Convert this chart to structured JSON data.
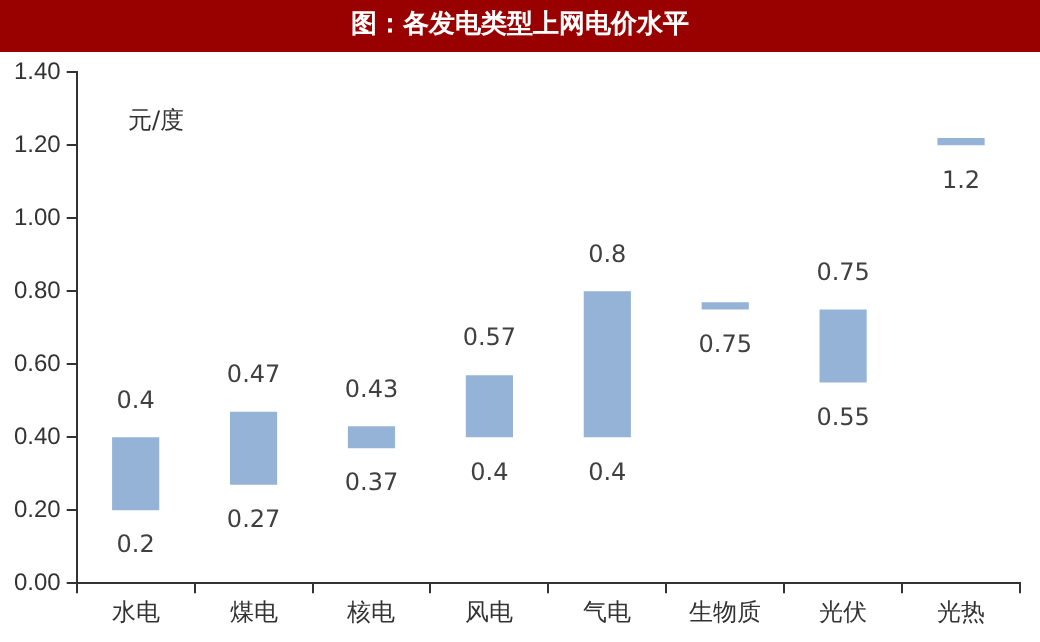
{
  "chart_data": {
    "type": "bar",
    "title": "图：各发电类型上网电价水平",
    "ylabel": "元/度",
    "categories": [
      "水电",
      "煤电",
      "核电",
      "风电",
      "气电",
      "生物质",
      "光伏",
      "光热"
    ],
    "base": [
      0.2,
      0.27,
      0.37,
      0.4,
      0.4,
      0.75,
      0.55,
      1.2
    ],
    "values": [
      0.2,
      0.2,
      0.06,
      0.17,
      0.4,
      0.02,
      0.2,
      0.02
    ],
    "color": "#95b3d7",
    "ylim": [
      0,
      1.4
    ],
    "yticks": [
      {
        "value": 0,
        "label": "0.00"
      },
      {
        "value": 0.2,
        "label": "0.20"
      },
      {
        "value": 0.4,
        "label": "0.40"
      },
      {
        "value": 0.6,
        "label": "0.60"
      },
      {
        "value": 0.8,
        "label": "0.80"
      },
      {
        "value": 1.0,
        "label": "1.00"
      },
      {
        "value": 1.2,
        "label": "1.20"
      },
      {
        "value": 1.4,
        "label": "1.40"
      }
    ],
    "grid": false,
    "annotations": [
      {
        "text": "0.4",
        "x": "水电",
        "y": 0.4
      },
      {
        "text": "0.2",
        "x": "水电",
        "y": 0.2
      },
      {
        "text": "0.47",
        "x": "煤电",
        "y": 0.47
      },
      {
        "text": "0.27",
        "x": "煤电",
        "y": 0.27
      },
      {
        "text": "0.43",
        "x": "核电",
        "y": 0.43
      },
      {
        "text": "0.37",
        "x": "核电",
        "y": 0.37
      },
      {
        "text": "0.57",
        "x": "风电",
        "y": 0.57
      },
      {
        "text": "0.4",
        "x": "风电",
        "y": 0.4
      },
      {
        "text": "0.8",
        "x": "气电",
        "y": 0.8
      },
      {
        "text": "0.4",
        "x": "气电",
        "y": 0.4
      },
      {
        "text": "0.75",
        "x": "生物质",
        "y": 0.75
      },
      {
        "text": "0.75",
        "x": "光伏",
        "y": 0.75
      },
      {
        "text": "0.55",
        "x": "光伏",
        "y": 0.55
      },
      {
        "text": "1.2",
        "x": "光热",
        "y": 1.2
      }
    ]
  }
}
